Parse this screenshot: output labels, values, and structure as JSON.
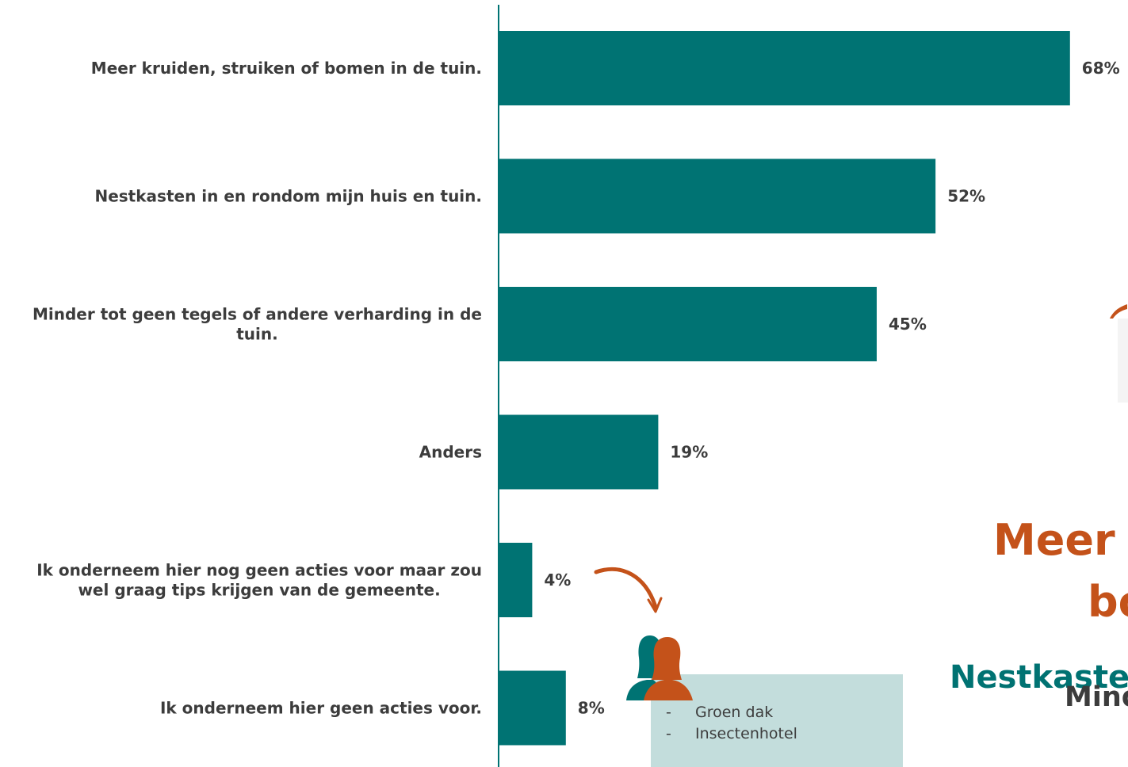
{
  "chart_data": {
    "type": "bar",
    "orientation": "horizontal",
    "categories": [
      "Meer kruiden, struiken of bomen in de tuin.",
      "Nestkasten in en rondom mijn huis en tuin.",
      "Minder tot geen tegels of andere verharding in de tuin.",
      "Anders",
      "Ik onderneem hier nog geen acties voor maar zou wel graag tips krijgen van de gemeente.",
      "Ik onderneem hier geen acties voor."
    ],
    "category_lines": [
      [
        "Meer kruiden, struiken of bomen in de tuin."
      ],
      [
        "Nestkasten in en rondom mijn huis en tuin."
      ],
      [
        "Minder tot geen tegels of andere verharding in de",
        "tuin."
      ],
      [
        "Anders"
      ],
      [
        "Ik onderneem hier nog geen acties voor maar zou",
        "wel graag tips krijgen van de gemeente."
      ],
      [
        "Ik onderneem hier geen acties voor."
      ]
    ],
    "values": [
      68,
      52,
      45,
      19,
      4,
      8
    ],
    "value_labels": [
      "68%",
      "52%",
      "45%",
      "19%",
      "4%",
      "8%"
    ],
    "xlim": [
      0,
      75
    ],
    "bar_color": "#007373",
    "axis_color": "#007373",
    "grid": false
  },
  "callout": {
    "items": [
      "Groen dak",
      "Insectenhotel"
    ],
    "bullet": "-"
  },
  "side_text": {
    "line1": "Meer k",
    "line2": "bo",
    "line3": "Nestkaste",
    "line4": "Mind"
  },
  "colors": {
    "accent_orange": "#c4521a",
    "accent_teal": "#007373",
    "callout_bg": "#c3dddc",
    "text": "#3c3c3c"
  }
}
